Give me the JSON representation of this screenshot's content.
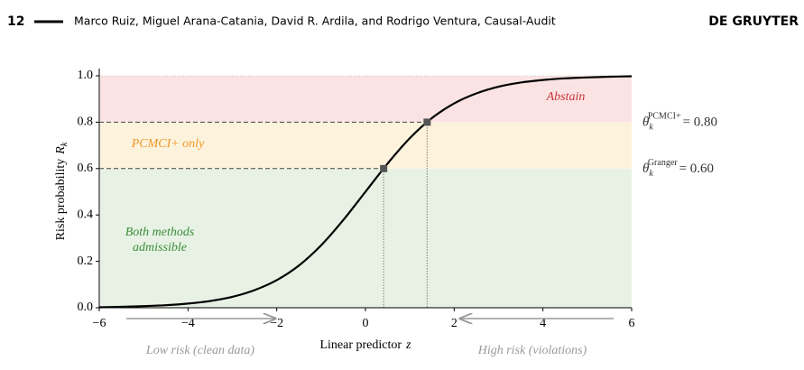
{
  "header": {
    "page_number": "12",
    "authors": "Marco Ruiz, Miguel Arana-Catania, David R. Ardila, and Rodrigo Ventura, Causal-Audit",
    "publisher": "DE GRUYTER"
  },
  "chart_data": {
    "type": "line",
    "xlabel": "Linear predictor",
    "xlabel_symbol": "z",
    "ylabel": "Risk probability",
    "ylabel_symbol": "R",
    "ylabel_subscript": "k",
    "x": [
      -6,
      -5.5,
      -5,
      -4.5,
      -4,
      -3.5,
      -3,
      -2.5,
      -2,
      -1.5,
      -1,
      -0.5,
      0,
      0.5,
      1,
      1.5,
      2,
      2.5,
      3,
      3.5,
      4,
      4.5,
      5,
      5.5,
      6
    ],
    "values": [
      0.002,
      0.004,
      0.007,
      0.011,
      0.018,
      0.029,
      0.047,
      0.076,
      0.119,
      0.182,
      0.269,
      0.378,
      0.5,
      0.622,
      0.731,
      0.818,
      0.881,
      0.924,
      0.953,
      0.971,
      0.982,
      0.989,
      0.993,
      0.996,
      0.998
    ],
    "color": "#000000",
    "xlim": [
      -6,
      6
    ],
    "ylim": [
      0,
      1
    ],
    "xticks": [
      {
        "value": -6,
        "label": "−6"
      },
      {
        "value": -4,
        "label": "−4"
      },
      {
        "value": -2,
        "label": "−2"
      },
      0,
      2,
      4,
      6
    ],
    "yticks": [
      {
        "value": 0,
        "label": "0.0"
      },
      {
        "value": 0.2,
        "label": "0.2"
      },
      {
        "value": 0.4,
        "label": "0.4"
      },
      {
        "value": 0.6,
        "label": "0.6"
      },
      {
        "value": 0.8,
        "label": "0.8"
      },
      {
        "value": 1,
        "label": "1.0"
      }
    ],
    "regions": [
      {
        "from": 0,
        "to": 0.6,
        "color": "#e7f2e4",
        "label": [
          "Both methods",
          "admissible"
        ],
        "label_color": "#3b8c3b"
      },
      {
        "from": 0.6,
        "to": 0.8,
        "color": "#fdf3dc",
        "label": [
          "PCMCI+ only"
        ],
        "label_color": "#f0962a"
      },
      {
        "from": 0.8,
        "to": 1,
        "color": "#fbe3e3",
        "label": [
          "Abstain"
        ],
        "label_color": "#c8343a"
      }
    ],
    "threshold_symbol": "θ",
    "threshold_subscript": "k",
    "thresholds": [
      {
        "method": "PCMCI+",
        "value": 0.8,
        "value_label": "= 0.80",
        "z": 1.39
      },
      {
        "method": "Granger",
        "value": 0.6,
        "value_label": "= 0.60",
        "z": 0.41
      }
    ],
    "annotations": [
      "Low risk (clean data)",
      "High risk (violations)"
    ]
  }
}
